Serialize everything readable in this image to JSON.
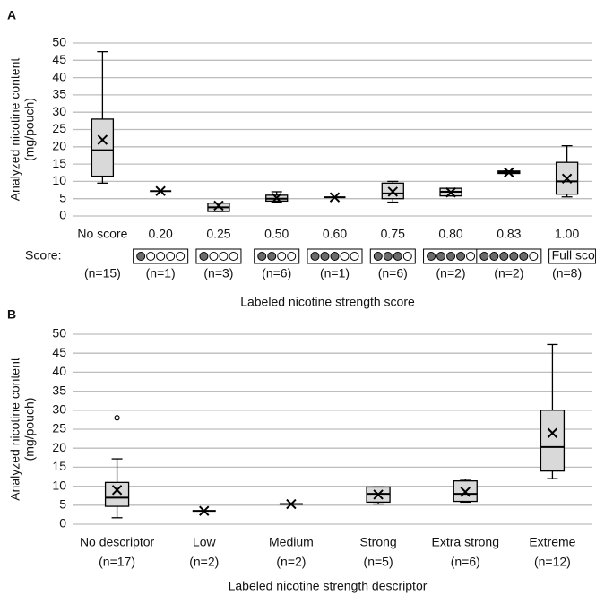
{
  "chart_data": [
    {
      "type": "box",
      "panel": "A",
      "ylabel": [
        "Analyzed nicotine content",
        "(mg/pouch)"
      ],
      "xlabel": "Labeled nicotine strength score",
      "score_label": "Score:",
      "categories": [
        "No score",
        "0.20",
        "0.25",
        "0.50",
        "0.60",
        "0.75",
        "0.80",
        "0.83",
        "1.00"
      ],
      "n_labels": [
        "(n=15)",
        "(n=1)",
        "(n=3)",
        "(n=6)",
        "(n=1)",
        "(n=6)",
        "(n=2)",
        "(n=2)",
        "(n=8)"
      ],
      "score_icons": [
        null,
        {
          "filled": 1,
          "total": 5
        },
        {
          "filled": 1,
          "total": 4
        },
        {
          "filled": 2,
          "total": 4
        },
        {
          "filled": 3,
          "total": 5
        },
        {
          "filled": 3,
          "total": 4
        },
        {
          "filled": 4,
          "total": 5
        },
        {
          "filled": 5,
          "total": 6
        },
        {
          "label": "Full score"
        }
      ],
      "boxes": [
        {
          "min": 9.5,
          "q1": 11.5,
          "median": 19,
          "q3": 28,
          "max": 47.5,
          "mean": 22
        },
        {
          "min": 7.2,
          "q1": 7.2,
          "median": 7.2,
          "q3": 7.2,
          "max": 7.2,
          "mean": 7.2
        },
        {
          "min": 1.3,
          "q1": 1.3,
          "median": 2.5,
          "q3": 3.7,
          "max": 3.7,
          "mean": 3
        },
        {
          "min": 4,
          "q1": 4.3,
          "median": 5,
          "q3": 6,
          "max": 7,
          "mean": 5.2
        },
        {
          "min": 5.4,
          "q1": 5.4,
          "median": 5.4,
          "q3": 5.4,
          "max": 5.4,
          "mean": 5.4
        },
        {
          "min": 4,
          "q1": 5,
          "median": 6.5,
          "q3": 9.5,
          "max": 10,
          "mean": 7
        },
        {
          "min": 5.8,
          "q1": 5.8,
          "median": 7,
          "q3": 8,
          "max": 8,
          "mean": 6.8
        },
        {
          "min": 12.3,
          "q1": 12.3,
          "median": 12.6,
          "q3": 13,
          "max": 13,
          "mean": 12.6
        },
        {
          "min": 5.5,
          "q1": 6.3,
          "median": 10,
          "q3": 15.5,
          "max": 20.3,
          "mean": 10.8
        }
      ],
      "ylim": [
        0,
        50
      ],
      "yticks": [
        0,
        5,
        10,
        15,
        20,
        25,
        30,
        35,
        40,
        45,
        50
      ],
      "grid": true
    },
    {
      "type": "box",
      "panel": "B",
      "ylabel": [
        "Analyzed nicotine content",
        "(mg/pouch)"
      ],
      "xlabel": "Labeled nicotine strength descriptor",
      "categories": [
        "No descriptor",
        "Low",
        "Medium",
        "Strong",
        "Extra strong",
        "Extreme"
      ],
      "n_labels": [
        "(n=17)",
        "(n=2)",
        "(n=2)",
        "(n=5)",
        "(n=6)",
        "(n=12)"
      ],
      "boxes": [
        {
          "min": 1.7,
          "q1": 4.7,
          "median": 7,
          "q3": 11,
          "max": 17.2,
          "mean": 9,
          "outliers": [
            28
          ]
        },
        {
          "min": 3.5,
          "q1": 3.5,
          "median": 3.5,
          "q3": 3.5,
          "max": 3.5,
          "mean": 3.5
        },
        {
          "min": 5.3,
          "q1": 5.3,
          "median": 5.3,
          "q3": 5.3,
          "max": 5.3,
          "mean": 5.3
        },
        {
          "min": 5.3,
          "q1": 5.8,
          "median": 8,
          "q3": 9.8,
          "max": 9.8,
          "mean": 7.8
        },
        {
          "min": 5.8,
          "q1": 6,
          "median": 8,
          "q3": 11.4,
          "max": 11.8,
          "mean": 8.5
        },
        {
          "min": 12,
          "q1": 14,
          "median": 20.3,
          "q3": 30,
          "max": 47.3,
          "mean": 24
        }
      ],
      "ylim": [
        0,
        50
      ],
      "yticks": [
        0,
        5,
        10,
        15,
        20,
        25,
        30,
        35,
        40,
        45,
        50
      ],
      "grid": true
    }
  ]
}
